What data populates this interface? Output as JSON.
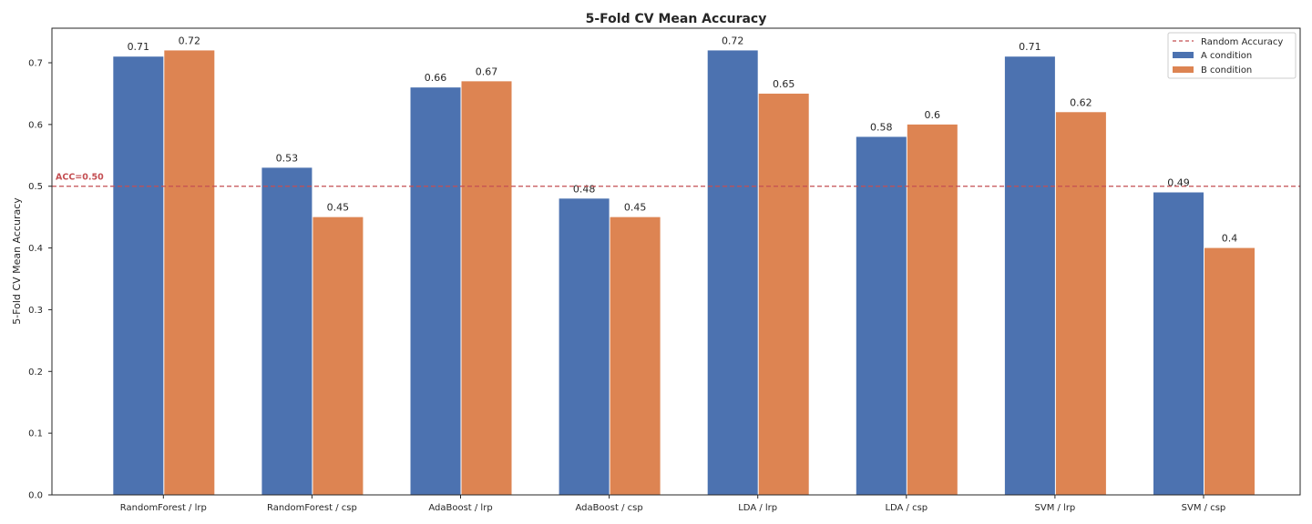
{
  "chart_data": {
    "type": "bar",
    "title": "5-Fold CV Mean Accuracy",
    "xlabel": "",
    "ylabel": "5-Fold CV Mean Accuracy",
    "ylim": [
      0,
      0.756
    ],
    "yticks": [
      "0.0",
      "0.1",
      "0.2",
      "0.3",
      "0.4",
      "0.5",
      "0.6",
      "0.7"
    ],
    "categories": [
      "RandomForest / lrp",
      "RandomForest / csp",
      "AdaBoost / lrp",
      "AdaBoost / csp",
      "LDA / lrp",
      "LDA / csp",
      "SVM / lrp",
      "SVM / csp"
    ],
    "series": [
      {
        "name": "A condition",
        "color": "#4c72b0",
        "values": [
          0.71,
          0.53,
          0.66,
          0.48,
          0.72,
          0.58,
          0.71,
          0.49
        ],
        "labels": [
          "0.71",
          "0.53",
          "0.66",
          "0.48",
          "0.72",
          "0.58",
          "0.71",
          "0.49"
        ]
      },
      {
        "name": "B condition",
        "color": "#dd8452",
        "values": [
          0.72,
          0.45,
          0.67,
          0.45,
          0.65,
          0.6,
          0.62,
          0.4
        ],
        "labels": [
          "0.72",
          "0.45",
          "0.67",
          "0.45",
          "0.65",
          "0.6",
          "0.62",
          "0.4"
        ]
      }
    ],
    "reference_line": {
      "name": "Random Accuracy",
      "value": 0.5,
      "label": "ACC=0.50",
      "color": "#c44e52",
      "style": "dashed"
    },
    "grid": false,
    "legend_position": "top-right"
  }
}
